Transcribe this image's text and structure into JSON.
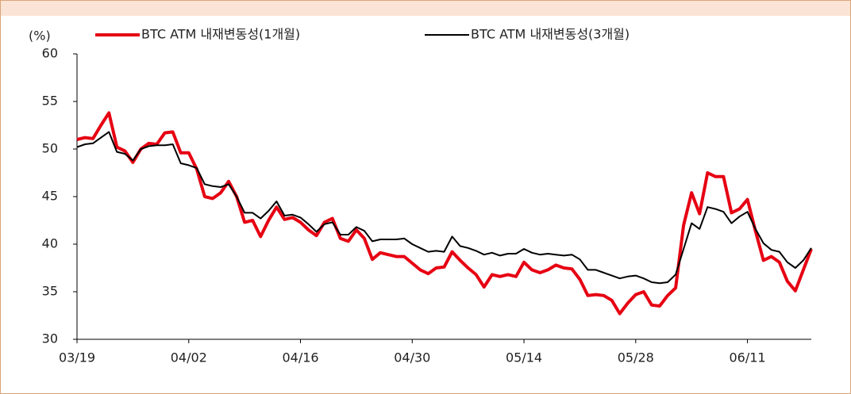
{
  "chart_data": {
    "type": "line",
    "y_label": "(%)",
    "categories": [
      "03/19",
      null,
      null,
      null,
      null,
      null,
      null,
      null,
      null,
      null,
      null,
      null,
      null,
      null,
      "04/02",
      null,
      null,
      null,
      null,
      null,
      null,
      null,
      null,
      null,
      null,
      null,
      null,
      null,
      "04/16",
      null,
      null,
      null,
      null,
      null,
      null,
      null,
      null,
      null,
      null,
      null,
      null,
      null,
      "04/30",
      null,
      null,
      null,
      null,
      null,
      null,
      null,
      null,
      null,
      null,
      null,
      null,
      null,
      "05/14",
      null,
      null,
      null,
      null,
      null,
      null,
      null,
      null,
      null,
      null,
      null,
      null,
      null,
      "05/28",
      null,
      null,
      null,
      null,
      null,
      null,
      null,
      null,
      null,
      null,
      null,
      null,
      null,
      "06/11",
      null,
      null,
      null,
      null,
      null,
      null,
      null,
      null
    ],
    "series": [
      {
        "name": "BTC ATM 내재변동성(1개월)",
        "color": "#e60012",
        "width": 4,
        "values": [
          51,
          51.2,
          51.1,
          52.5,
          53.8,
          50.2,
          49.8,
          48.6,
          50,
          50.6,
          50.5,
          51.7,
          51.8,
          49.6,
          49.6,
          47.9,
          45,
          44.8,
          45.4,
          46.6,
          45,
          42.3,
          42.5,
          40.8,
          42.5,
          43.9,
          42.6,
          42.8,
          42.3,
          41.5,
          40.9,
          42.3,
          42.7,
          40.6,
          40.3,
          41.5,
          40.6,
          38.4,
          39.1,
          38.9,
          38.7,
          38.7,
          38,
          37.3,
          36.9,
          37.5,
          37.6,
          39.2,
          38.3,
          37.5,
          36.8,
          35.5,
          36.8,
          36.6,
          36.8,
          36.6,
          38.1,
          37.3,
          37,
          37.3,
          37.8,
          37.5,
          37.4,
          36.3,
          34.6,
          34.7,
          34.6,
          34.1,
          32.7,
          33.8,
          34.7,
          35,
          33.6,
          33.5,
          34.6,
          35.4,
          42,
          45.4,
          43.2,
          47.5,
          47.1,
          47.1,
          43.3,
          43.7,
          44.7,
          41.4,
          38.3,
          38.7,
          38.1,
          36.1,
          35.1,
          37.3,
          39.5
        ]
      },
      {
        "name": "BTC ATM 내재변동성(3개월)",
        "color": "#000000",
        "width": 2,
        "values": [
          50.2,
          50.5,
          50.6,
          51.2,
          51.8,
          49.7,
          49.5,
          48.8,
          50,
          50.3,
          50.4,
          50.4,
          50.5,
          48.5,
          48.3,
          48,
          46.3,
          46.1,
          46,
          46.3,
          45,
          43.3,
          43.3,
          42.7,
          43.5,
          44.5,
          43,
          43.1,
          42.8,
          42.1,
          41.3,
          42.1,
          42.3,
          41,
          41,
          41.8,
          41.4,
          40.3,
          40.5,
          40.5,
          40.5,
          40.6,
          40,
          39.6,
          39.2,
          39.3,
          39.2,
          40.8,
          39.8,
          39.6,
          39.3,
          38.9,
          39.1,
          38.8,
          39,
          39,
          39.5,
          39.1,
          38.9,
          39,
          38.9,
          38.8,
          38.9,
          38.4,
          37.3,
          37.3,
          37,
          36.7,
          36.4,
          36.6,
          36.7,
          36.4,
          36,
          35.9,
          36,
          36.8,
          39.5,
          42.2,
          41.6,
          43.9,
          43.7,
          43.4,
          42.2,
          42.9,
          43.4,
          41.6,
          40.1,
          39.4,
          39.2,
          38.1,
          37.5,
          38.3,
          39.6
        ]
      }
    ],
    "ylim": [
      30,
      60
    ],
    "yticks": [
      30,
      35,
      40,
      45,
      50,
      55,
      60
    ],
    "grid": false
  }
}
